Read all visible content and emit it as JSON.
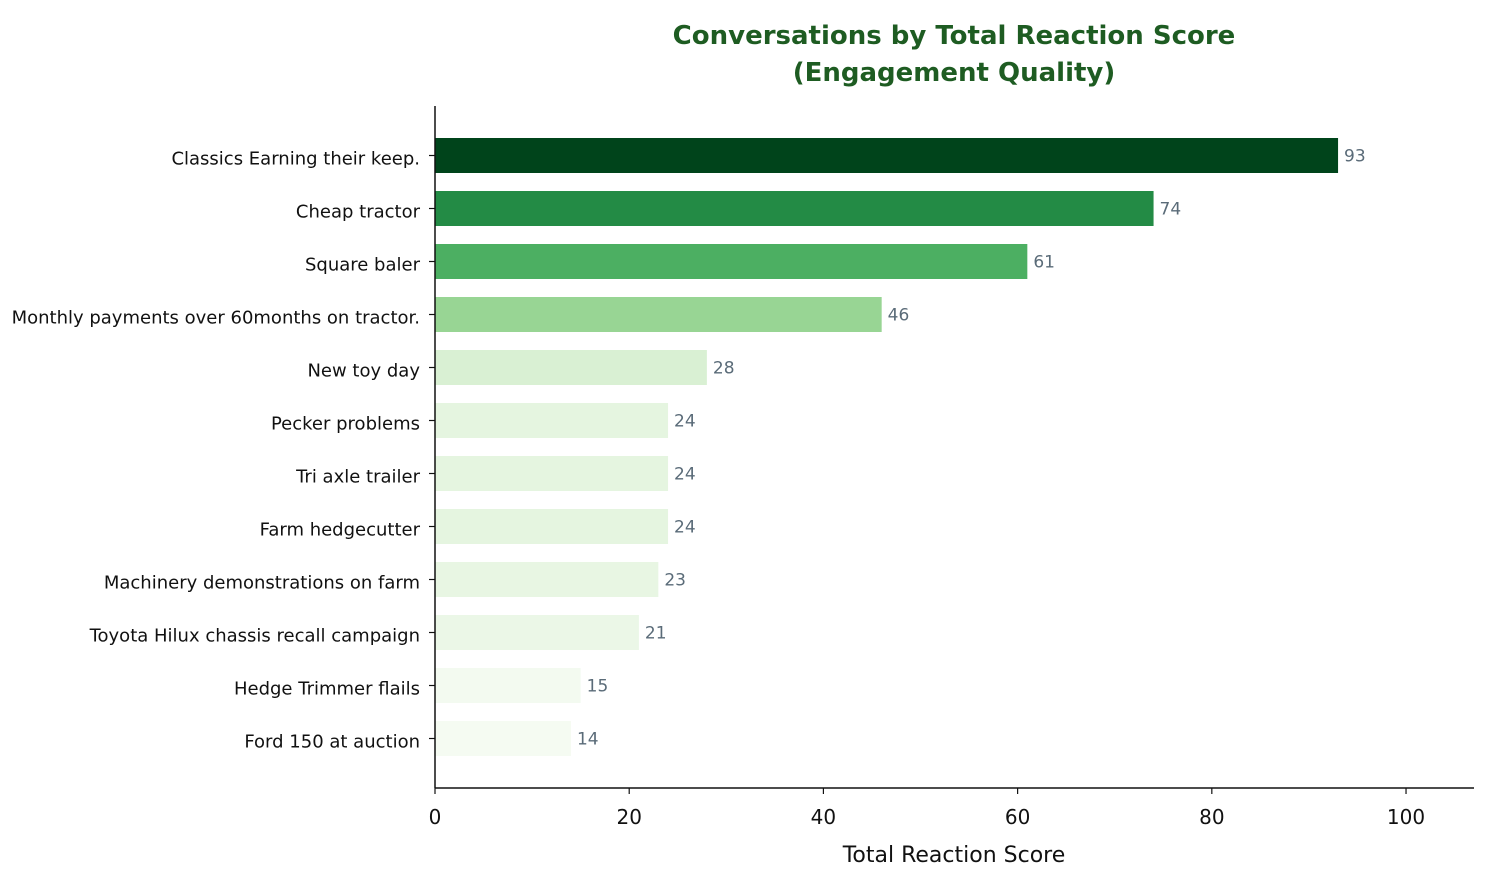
{
  "chart_data": {
    "type": "bar",
    "orientation": "horizontal",
    "title": [
      "Conversations by Total Reaction Score",
      "(Engagement Quality)"
    ],
    "xlabel": "Total Reaction Score",
    "ylabel": "",
    "xlim": [
      0,
      107
    ],
    "xticks": [
      0,
      20,
      40,
      60,
      80,
      100
    ],
    "grid": false,
    "categories": [
      "Classics Earning their keep.",
      "Cheap tractor",
      "Square baler",
      "Monthly payments over 60months on tractor.",
      "New toy day",
      "Pecker problems",
      "Tri axle trailer",
      "Farm hedgecutter",
      "Machinery demonstrations on farm",
      "Toyota Hilux chassis recall campaign",
      "Hedge Trimmer flails",
      "Ford 150 at auction"
    ],
    "values": [
      93,
      74,
      61,
      46,
      28,
      24,
      24,
      24,
      23,
      21,
      15,
      14
    ],
    "colors": [
      "#00441b",
      "#238b45",
      "#4caf62",
      "#98d594",
      "#d9f0d3",
      "#e5f5e0",
      "#e5f5e0",
      "#e5f5e0",
      "#e8f6e3",
      "#ebf7e7",
      "#f3faf0",
      "#f5fbf2"
    ],
    "title_color": "#1e5c22",
    "value_label_color": "#5a6b78"
  }
}
